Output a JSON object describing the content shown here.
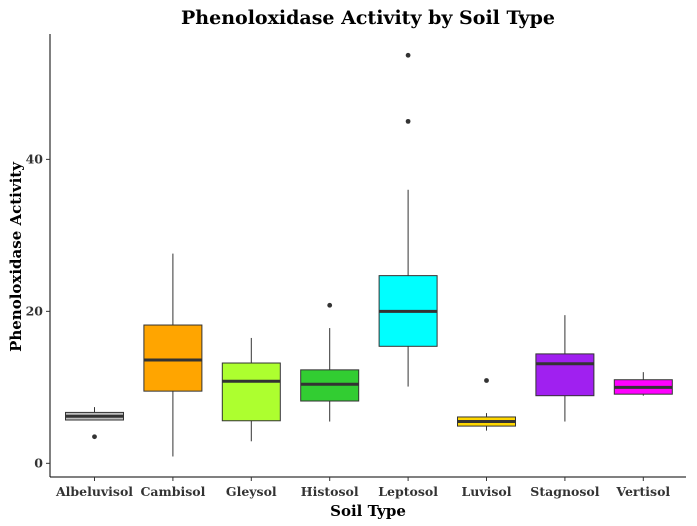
{
  "chart_data": {
    "type": "box",
    "title": "Phenoloxidase Activity by Soil Type",
    "xlabel": "Soil Type",
    "ylabel": "Phenoloxidase Activity",
    "ylim": [
      -1.8,
      56.5
    ],
    "yticks": [
      0,
      20,
      40
    ],
    "grid": false,
    "legend": "none",
    "categories": [
      "Albeluvisol",
      "Cambisol",
      "Gleysol",
      "Histosol",
      "Leptosol",
      "Luvisol",
      "Stagnosol",
      "Vertisol"
    ],
    "boxes": [
      {
        "category": "Albeluvisol",
        "whisker_low": 5.7,
        "q1": 5.7,
        "median": 6.2,
        "q3": 6.7,
        "whisker_high": 7.4,
        "outliers": [
          3.5
        ],
        "color": "#bebebe"
      },
      {
        "category": "Cambisol",
        "whisker_low": 0.9,
        "q1": 9.5,
        "median": 13.6,
        "q3": 18.2,
        "whisker_high": 27.6,
        "outliers": [],
        "color": "#ffa500"
      },
      {
        "category": "Gleysol",
        "whisker_low": 2.9,
        "q1": 5.6,
        "median": 10.8,
        "q3": 13.2,
        "whisker_high": 16.5,
        "outliers": [],
        "color": "#adff2f"
      },
      {
        "category": "Histosol",
        "whisker_low": 5.5,
        "q1": 8.2,
        "median": 10.4,
        "q3": 12.3,
        "whisker_high": 17.8,
        "outliers": [
          20.8
        ],
        "color": "#32cd32"
      },
      {
        "category": "Leptosol",
        "whisker_low": 10.1,
        "q1": 15.4,
        "median": 20.0,
        "q3": 24.7,
        "whisker_high": 36.0,
        "outliers": [
          45.0,
          53.7
        ],
        "color": "#00ffff"
      },
      {
        "category": "Luvisol",
        "whisker_low": 4.3,
        "q1": 4.9,
        "median": 5.5,
        "q3": 6.1,
        "whisker_high": 6.6,
        "outliers": [
          10.9
        ],
        "color": "#ffd700"
      },
      {
        "category": "Stagnosol",
        "whisker_low": 5.5,
        "q1": 8.9,
        "median": 13.1,
        "q3": 14.4,
        "whisker_high": 19.5,
        "outliers": [],
        "color": "#a020f0"
      },
      {
        "category": "Vertisol",
        "whisker_low": 8.9,
        "q1": 9.1,
        "median": 10.0,
        "q3": 11.0,
        "whisker_high": 12.0,
        "outliers": [],
        "color": "#ff00ff"
      }
    ]
  }
}
